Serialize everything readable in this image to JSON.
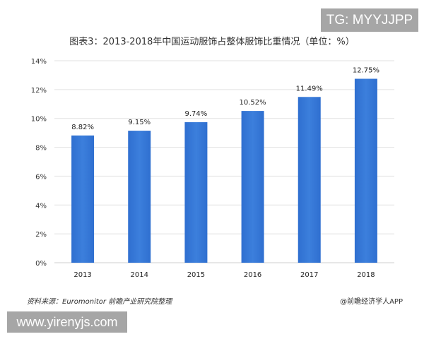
{
  "chart_data": {
    "type": "bar",
    "title": "图表3：2013-2018年中国运动服饰占整体服饰比重情况（单位：%）",
    "categories": [
      "2013",
      "2014",
      "2015",
      "2016",
      "2017",
      "2018"
    ],
    "values": [
      8.82,
      9.15,
      9.74,
      10.52,
      11.49,
      12.75
    ],
    "data_labels": [
      "8.82%",
      "9.15%",
      "9.74%",
      "10.52%",
      "11.49%",
      "12.75%"
    ],
    "ylim": [
      0,
      14
    ],
    "yticks": [
      "0%",
      "2%",
      "4%",
      "6%",
      "8%",
      "10%",
      "12%",
      "14%"
    ],
    "xlabel": "",
    "ylabel": "",
    "grid": true,
    "bar_color": "#3c7fdc"
  },
  "source": "资料来源：Euromonitor 前瞻产业研究院整理",
  "brand": "@前瞻经济学人APP",
  "watermarks": {
    "tg": "TG: MYYJJPP",
    "site": "www.yirenyjs.com"
  }
}
